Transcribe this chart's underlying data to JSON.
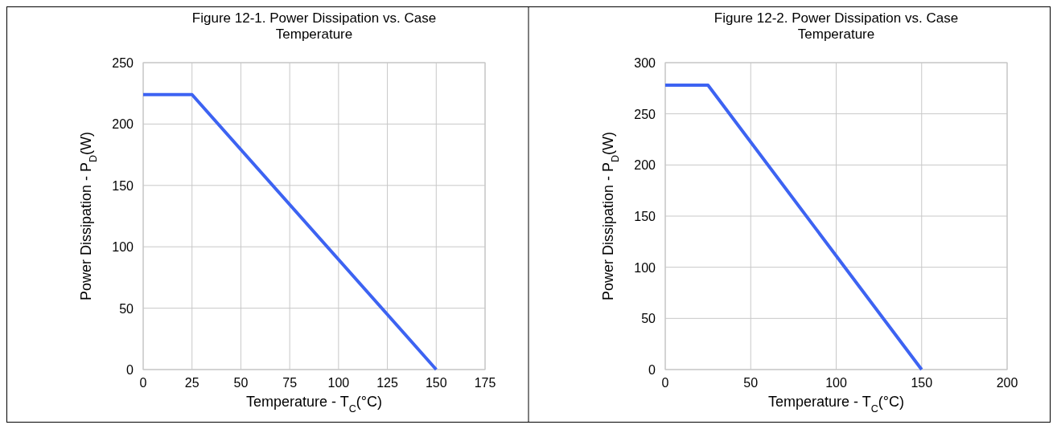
{
  "chart_data": [
    {
      "type": "line",
      "title": "Figure 12-1. Power Dissipation vs. Case Temperature",
      "xlabel": "Temperature - T$_{C}$(°C)",
      "ylabel": "Power Dissipation - P$_{D}$(W)",
      "x": [
        0,
        25,
        150
      ],
      "series": [
        {
          "color": "#3d63f2",
          "values": [
            224,
            224,
            0
          ]
        }
      ],
      "xlim": [
        0,
        175
      ],
      "xticks": [
        0,
        25,
        50,
        75,
        100,
        125,
        150,
        175
      ],
      "ylim": [
        0,
        250
      ],
      "yticks": [
        0,
        50,
        100,
        150,
        200,
        250
      ],
      "grid": true,
      "marker": "none",
      "line_style": "solid"
    },
    {
      "type": "line",
      "title": "Figure 12-2. Power Dissipation vs. Case Temperature",
      "xlabel": "Temperature - T$_{C}$(°C)",
      "ylabel": "Power Dissipation - P$_{D}$(W)",
      "x": [
        0,
        25,
        150
      ],
      "series": [
        {
          "color": "#3d63f2",
          "values": [
            278,
            278,
            0
          ]
        }
      ],
      "xlim": [
        0,
        200
      ],
      "xticks": [
        0,
        50,
        100,
        150,
        200
      ],
      "ylim": [
        0,
        300
      ],
      "yticks": [
        0,
        50,
        100,
        150,
        200,
        250,
        300
      ],
      "grid": true,
      "marker": "none",
      "line_style": "solid"
    }
  ]
}
